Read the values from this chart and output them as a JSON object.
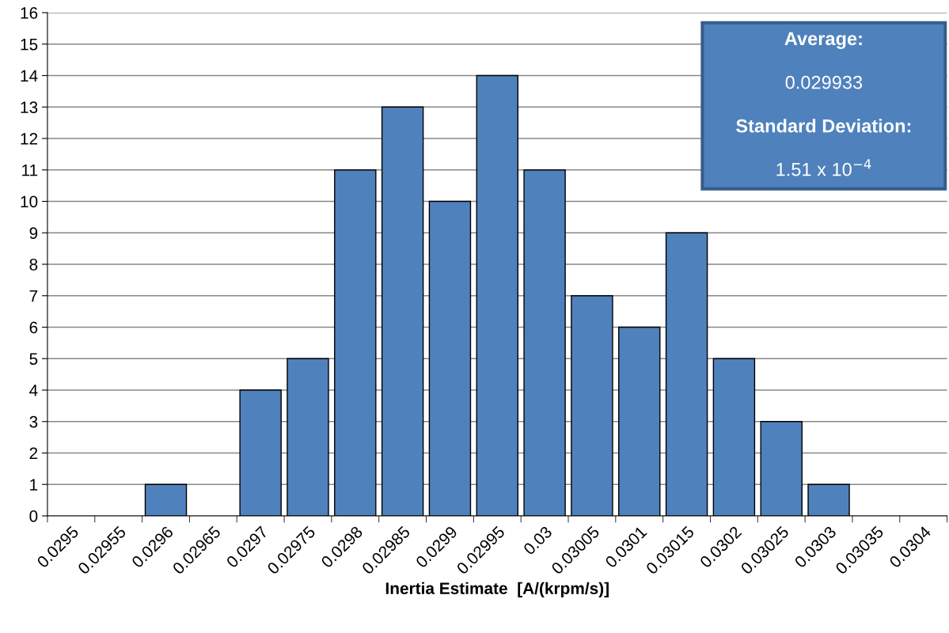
{
  "chart_data": {
    "type": "bar",
    "xlabel": "Inertia Estimate  [A/(krpm/s)]",
    "categories": [
      "0.0295",
      "0.02955",
      "0.0296",
      "0.02965",
      "0.0297",
      "0.02975",
      "0.0298",
      "0.02985",
      "0.0299",
      "0.02995",
      "0.03",
      "0.03005",
      "0.0301",
      "0.03015",
      "0.0302",
      "0.03025",
      "0.0303",
      "0.03035",
      "0.0304"
    ],
    "values": [
      0,
      0,
      1,
      0,
      4,
      5,
      11,
      13,
      10,
      14,
      11,
      7,
      6,
      9,
      5,
      3,
      1,
      0,
      0
    ],
    "color": "#4f81bd",
    "ylim": [
      0,
      16
    ],
    "yticks": [
      0,
      1,
      2,
      3,
      4,
      5,
      6,
      7,
      8,
      9,
      10,
      11,
      12,
      13,
      14,
      15,
      16
    ],
    "grid": "y",
    "legend": false,
    "annotations": [
      "Average:",
      "0.029933",
      "Standard Deviation:",
      "1.51 x 10$^{−4}$"
    ]
  }
}
